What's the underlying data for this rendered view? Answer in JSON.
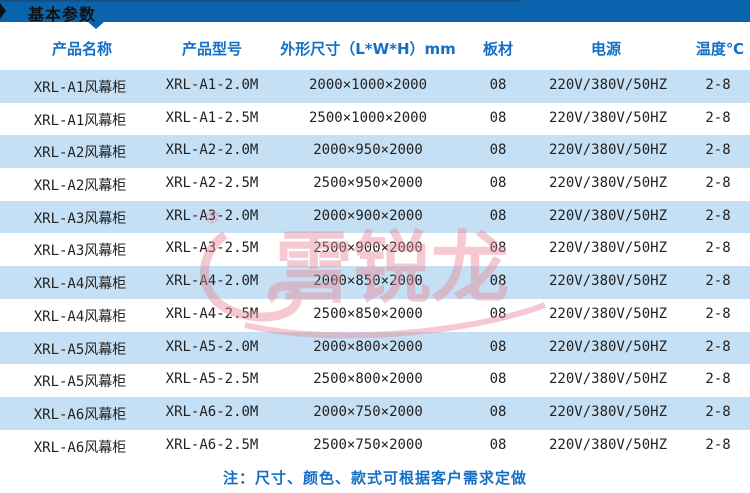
{
  "section_title": "基本参数",
  "headers": [
    "产品名称",
    "产品型号",
    "外形尺寸（L*W*H）mm",
    "板材",
    "电源",
    "温度℃"
  ],
  "rows": [
    [
      "XRL-A1风幕柜",
      "XRL-A1-2.0M",
      "2000×1000×2000",
      "08",
      "220V/380V/50HZ",
      "2-8"
    ],
    [
      "XRL-A1风幕柜",
      "XRL-A1-2.5M",
      "2500×1000×2000",
      "08",
      "220V/380V/50HZ",
      "2-8"
    ],
    [
      "XRL-A2风幕柜",
      "XRL-A2-2.0M",
      "2000×950×2000",
      "08",
      "220V/380V/50HZ",
      "2-8"
    ],
    [
      "XRL-A2风幕柜",
      "XRL-A2-2.5M",
      "2500×950×2000",
      "08",
      "220V/380V/50HZ",
      "2-8"
    ],
    [
      "XRL-A3风幕柜",
      "XRL-A3-2.0M",
      "2000×900×2000",
      "08",
      "220V/380V/50HZ",
      "2-8"
    ],
    [
      "XRL-A3风幕柜",
      "XRL-A3-2.5M",
      "2500×900×2000",
      "08",
      "220V/380V/50HZ",
      "2-8"
    ],
    [
      "XRL-A4风幕柜",
      "XRL-A4-2.0M",
      "2000×850×2000",
      "08",
      "220V/380V/50HZ",
      "2-8"
    ],
    [
      "XRL-A4风幕柜",
      "XRL-A4-2.5M",
      "2500×850×2000",
      "08",
      "220V/380V/50HZ",
      "2-8"
    ],
    [
      "XRL-A5风幕柜",
      "XRL-A5-2.0M",
      "2000×800×2000",
      "08",
      "220V/380V/50HZ",
      "2-8"
    ],
    [
      "XRL-A5风幕柜",
      "XRL-A5-2.5M",
      "2500×800×2000",
      "08",
      "220V/380V/50HZ",
      "2-8"
    ],
    [
      "XRL-A6风幕柜",
      "XRL-A6-2.0M",
      "2000×750×2000",
      "08",
      "220V/380V/50HZ",
      "2-8"
    ],
    [
      "XRL-A6风幕柜",
      "XRL-A6-2.5M",
      "2500×750×2000",
      "08",
      "220V/380V/50HZ",
      "2-8"
    ]
  ],
  "footer_note": "注：尺寸、颜色、款式可根据客户需求定做",
  "watermark_text": "雪锐龙",
  "colors": {
    "bar": "#0a64ad",
    "header_text": "#1470c4",
    "row_alt": "#c5e0f5",
    "watermark": "#e88a9a"
  }
}
